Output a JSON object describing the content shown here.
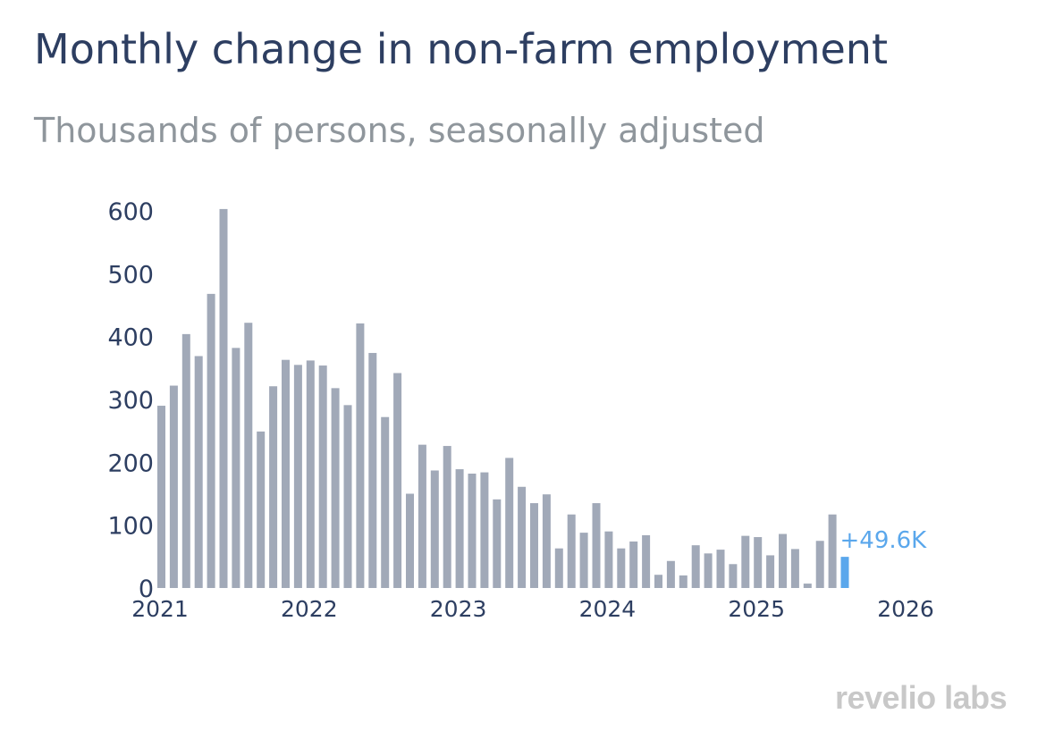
{
  "chart_data": {
    "type": "bar",
    "title": "Monthly change in non-farm employment",
    "subtitle": "Thousands of persons, seasonally adjusted",
    "xlabel": "",
    "ylabel": "",
    "x_start": "2021-01",
    "x": [
      "2021-01",
      "2021-02",
      "2021-03",
      "2021-04",
      "2021-05",
      "2021-06",
      "2021-07",
      "2021-08",
      "2021-09",
      "2021-10",
      "2021-11",
      "2021-12",
      "2022-01",
      "2022-02",
      "2022-03",
      "2022-04",
      "2022-05",
      "2022-06",
      "2022-07",
      "2022-08",
      "2022-09",
      "2022-10",
      "2022-11",
      "2022-12",
      "2023-01",
      "2023-02",
      "2023-03",
      "2023-04",
      "2023-05",
      "2023-06",
      "2023-07",
      "2023-08",
      "2023-09",
      "2023-10",
      "2023-11",
      "2023-12",
      "2024-01",
      "2024-02",
      "2024-03",
      "2024-04",
      "2024-05",
      "2024-06",
      "2024-07",
      "2024-08",
      "2024-09",
      "2024-10",
      "2024-11",
      "2024-12",
      "2025-01",
      "2025-02",
      "2025-03",
      "2025-04",
      "2025-05",
      "2025-06",
      "2025-07",
      "2025-08"
    ],
    "values": [
      290,
      322,
      404,
      369,
      468,
      603,
      382,
      422,
      249,
      321,
      363,
      355,
      362,
      354,
      318,
      291,
      421,
      374,
      272,
      342,
      150,
      228,
      187,
      226,
      189,
      182,
      184,
      141,
      207,
      161,
      135,
      149,
      63,
      117,
      88,
      135,
      90,
      63,
      74,
      84,
      21,
      43,
      20,
      68,
      55,
      61,
      38,
      83,
      81,
      52,
      86,
      62,
      7,
      75,
      117,
      49.6
    ],
    "highlight_index": 55,
    "highlight_label": "+49.6K",
    "x_ticks": [
      "2021",
      "2022",
      "2023",
      "2024",
      "2025",
      "2026"
    ],
    "y_ticks": [
      0,
      100,
      200,
      300,
      400,
      500,
      600
    ],
    "ylim": [
      0,
      620
    ],
    "grid": false,
    "legend": "none",
    "colors": {
      "bar": "#a1a9b8",
      "highlight": "#5aa7ec",
      "axis_text": "#2d3e61"
    }
  },
  "brand": {
    "logo_text": "revelio labs"
  }
}
